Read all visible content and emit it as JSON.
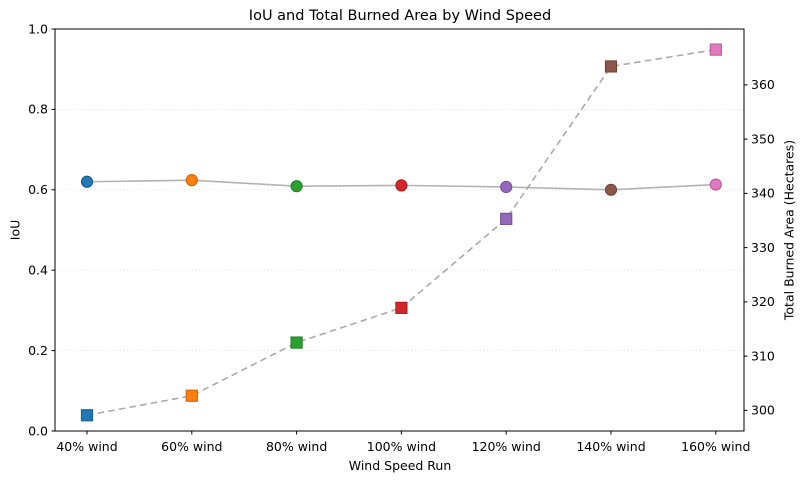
{
  "chart_data": {
    "type": "line",
    "title": "IoU and Total Burned Area by Wind Speed",
    "xlabel": "Wind Speed Run",
    "categories": [
      "40% wind",
      "60% wind",
      "80% wind",
      "100% wind",
      "120% wind",
      "140% wind",
      "160% wind"
    ],
    "series": [
      {
        "name": "IoU",
        "axis": "left",
        "marker": "circle",
        "line": {
          "style": "solid",
          "color": "#b3b3b3"
        },
        "values": [
          0.62,
          0.624,
          0.609,
          0.611,
          0.607,
          0.6,
          0.613
        ]
      },
      {
        "name": "Total Burned Area",
        "axis": "right",
        "marker": "square",
        "line": {
          "style": "dashed",
          "color": "#aaaaaa"
        },
        "values": [
          299.1,
          302.7,
          312.5,
          318.9,
          335.3,
          363.4,
          366.5
        ]
      }
    ],
    "marker_colors": [
      "#1f77b4",
      "#ff7f0e",
      "#2ca02c",
      "#d62728",
      "#9467bd",
      "#8c564b",
      "#e377c2"
    ],
    "marker_edge_colors": [
      "#185d8c",
      "#c7630b",
      "#227d22",
      "#a71e1f",
      "#735093",
      "#6d433b",
      "#b15d97"
    ],
    "axes": {
      "left": {
        "label": "IoU",
        "min": 0.0,
        "max": 1.0,
        "ticks": [
          0.0,
          0.2,
          0.4,
          0.6,
          0.8,
          1.0
        ],
        "tick_labels": [
          "0.0",
          "0.2",
          "0.4",
          "0.6",
          "0.8",
          "1.0"
        ]
      },
      "right": {
        "label": "Total Burned Area (Hectares)",
        "min": 296.2,
        "max": 370.3,
        "ticks": [
          300,
          310,
          320,
          330,
          340,
          350,
          360
        ],
        "tick_labels": [
          "300",
          "310",
          "320",
          "330",
          "340",
          "350",
          "360"
        ]
      }
    },
    "grid": {
      "axis": "y",
      "style": "dotted",
      "color": "#d9d9d9"
    },
    "legend": "none",
    "background": "#ffffff",
    "spine_color": "#000000"
  }
}
